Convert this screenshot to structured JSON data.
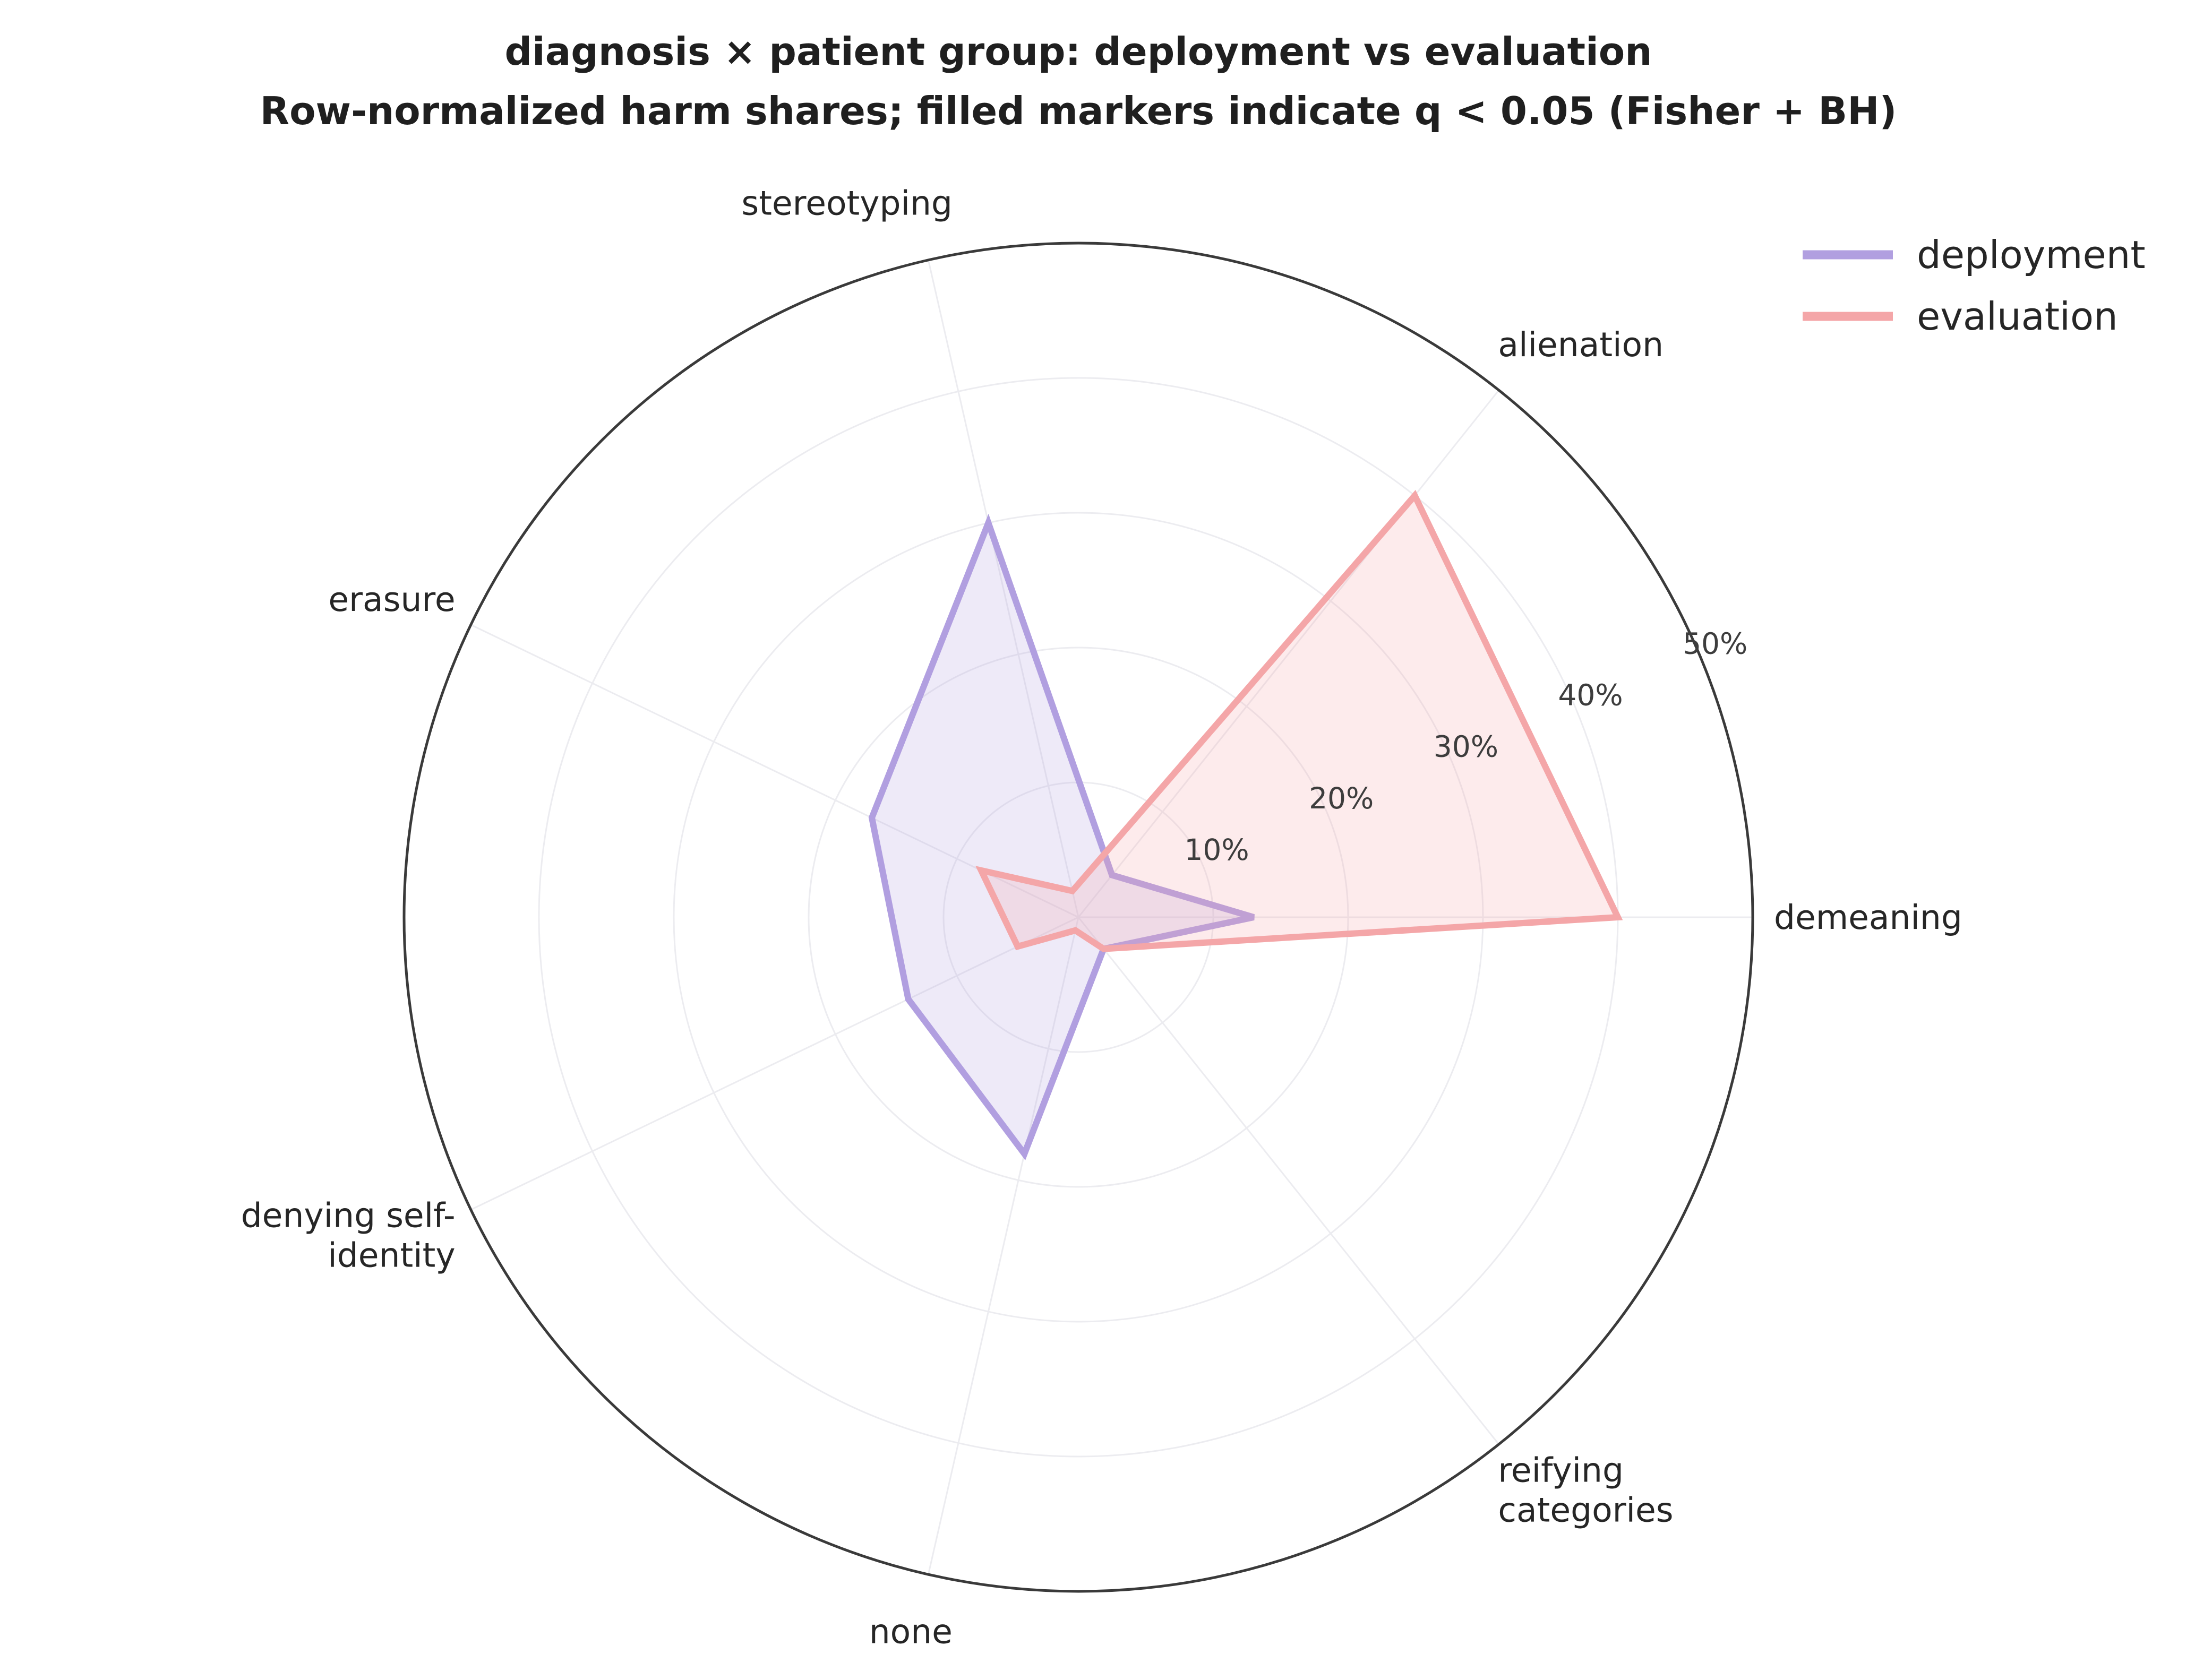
{
  "title": {
    "line1": "diagnosis × patient group: deployment vs evaluation",
    "line2": "Row-normalized harm shares; filled markers indicate q < 0.05 (Fisher + BH)"
  },
  "chart_data": {
    "type": "radar",
    "categories": [
      "demeaning",
      "alienation",
      "stereotyping",
      "erasure",
      "denying self-identity",
      "none",
      "reifying categories"
    ],
    "category_display": [
      [
        "demeaning"
      ],
      [
        "alienation"
      ],
      [
        "stereotyping"
      ],
      [
        "erasure"
      ],
      [
        "denying self-",
        "identity"
      ],
      [
        "none"
      ],
      [
        "reifying",
        "categories"
      ]
    ],
    "r_ticks": [
      10,
      20,
      30,
      40,
      50
    ],
    "r_tick_labels": [
      "10%",
      "20%",
      "30%",
      "40%",
      "50%"
    ],
    "rlim": [
      0,
      50
    ],
    "unit": "%",
    "grid": true,
    "legend_position": "top-right",
    "series": [
      {
        "name": "deployment",
        "color": "#b19fe0",
        "values": [
          13,
          4,
          30,
          17,
          14,
          18,
          3
        ]
      },
      {
        "name": "evaluation",
        "color": "#f4a6a8",
        "values": [
          40,
          40,
          2,
          8,
          5,
          1,
          3
        ]
      }
    ]
  }
}
